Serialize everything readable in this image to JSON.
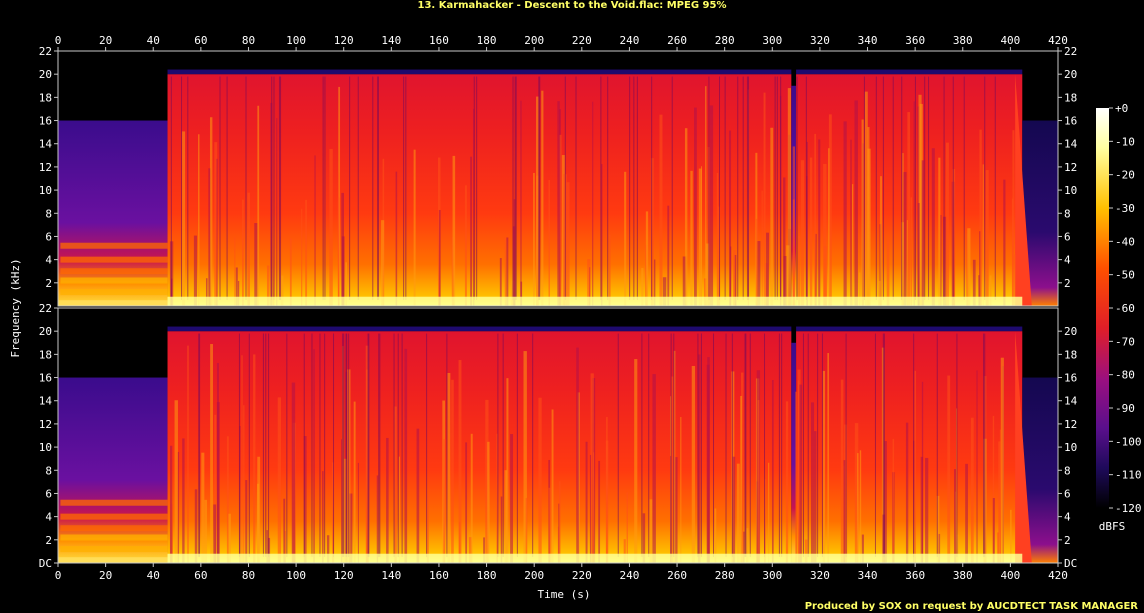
{
  "title": "13. Karmahacker - Descent to the Void.flac: MPEG 95%",
  "credit": "Produced by SOX on request by AUCDTECT TASK MANAGER",
  "colors": {
    "background": "#000000",
    "title_text": "#ffff66",
    "axis_text": "#ffffff",
    "palette": [
      "#000000",
      "#0a0a3a",
      "#2a0a6e",
      "#5a0f8c",
      "#8c0f8c",
      "#c8143c",
      "#e81e1e",
      "#ff5a00",
      "#ffa000",
      "#ffe040",
      "#ffffc8",
      "#ffffff"
    ]
  },
  "chart_data": {
    "type": "heatmap",
    "subtype": "spectrogram",
    "xlabel": "Time (s)",
    "ylabel": "Frequency (kHz)",
    "colorbar_label": "dBFS",
    "xlim": [
      0,
      420
    ],
    "x_ticks": [
      "0",
      "20",
      "40",
      "60",
      "80",
      "100",
      "120",
      "140",
      "160",
      "180",
      "200",
      "220",
      "240",
      "260",
      "280",
      "300",
      "320",
      "340",
      "360",
      "380",
      "400",
      "420"
    ],
    "colorbar_ticks": [
      "+0",
      "-10",
      "-20",
      "-30",
      "-40",
      "-50",
      "-60",
      "-70",
      "-80",
      "-90",
      "-100",
      "-110",
      "-120"
    ],
    "channels": [
      {
        "ylim": [
          0,
          22
        ],
        "y_ticks_left": [
          "2",
          "4",
          "6",
          "8",
          "10",
          "12",
          "14",
          "16",
          "18",
          "20",
          "22"
        ],
        "y_ticks_right": [
          "2",
          "4",
          "6",
          "8",
          "10",
          "12",
          "14",
          "16",
          "18",
          "20",
          "22"
        ]
      },
      {
        "ylim": [
          0,
          22
        ],
        "y_ticks_left": [
          "DC",
          "2",
          "4",
          "6",
          "8",
          "10",
          "12",
          "14",
          "16",
          "18",
          "20",
          "22"
        ],
        "y_ticks_right": [
          "DC",
          "2",
          "4",
          "6",
          "8",
          "10",
          "12",
          "14",
          "16",
          "18",
          "20"
        ]
      }
    ],
    "segments": [
      {
        "from_s": 0,
        "to_s": 46,
        "cutoff_khz": 16,
        "level": "quiet intro"
      },
      {
        "from_s": 46,
        "to_s": 308,
        "cutoff_khz": 20,
        "level": "loud"
      },
      {
        "from_s": 308,
        "to_s": 310,
        "cutoff_khz": 19,
        "level": "dip"
      },
      {
        "from_s": 310,
        "to_s": 405,
        "cutoff_khz": 20,
        "level": "loud"
      },
      {
        "from_s": 405,
        "to_s": 420,
        "cutoff_khz": 16,
        "level": "fade out"
      }
    ]
  }
}
